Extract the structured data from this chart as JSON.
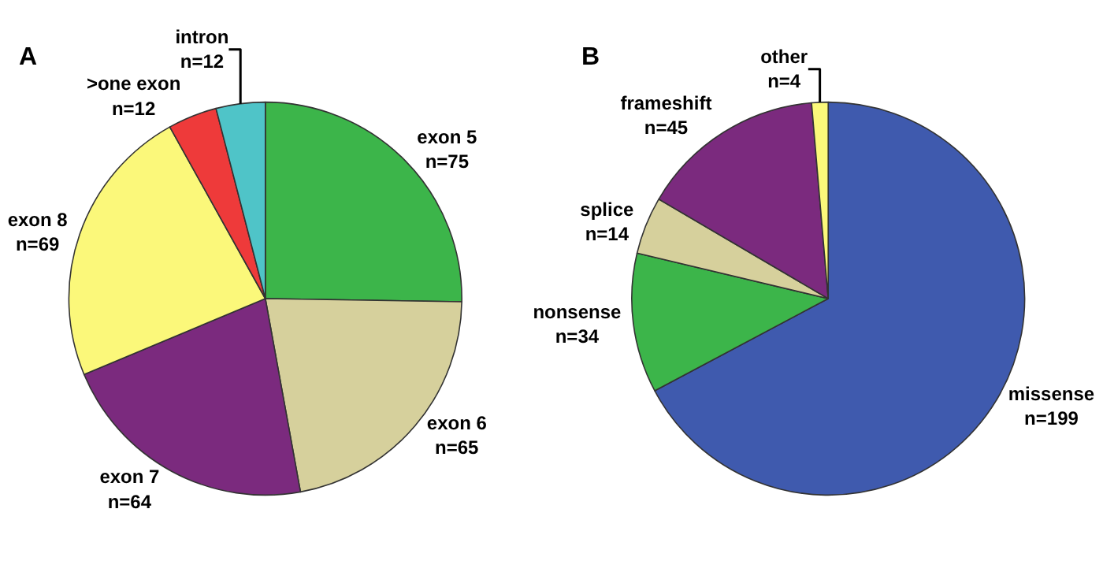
{
  "chart_data": [
    {
      "type": "pie",
      "title": "A",
      "categories": [
        "exon 5",
        "exon 6",
        "exon 7",
        "exon 8",
        ">one exon",
        "intron"
      ],
      "values": [
        75,
        65,
        64,
        69,
        12,
        12
      ],
      "value_labels": [
        "n=75",
        "n=65",
        "n=64",
        "n=69",
        "n=12",
        "n=12"
      ],
      "colors": [
        "#3cb54a",
        "#d6d09c",
        "#7b2a7e",
        "#fbf87a",
        "#ee3a3a",
        "#4fc4c8"
      ],
      "legend": false
    },
    {
      "type": "pie",
      "title": "B",
      "categories": [
        "missense",
        "nonsense",
        "splice",
        "frameshift",
        "other"
      ],
      "values": [
        199,
        34,
        14,
        45,
        4
      ],
      "value_labels": [
        "n=199",
        "n=34",
        "n=14",
        "n=45",
        "n=4"
      ],
      "colors": [
        "#3f5aae",
        "#3cb54a",
        "#d6d09c",
        "#7b2a7e",
        "#fbf87a"
      ],
      "legend": false
    }
  ]
}
